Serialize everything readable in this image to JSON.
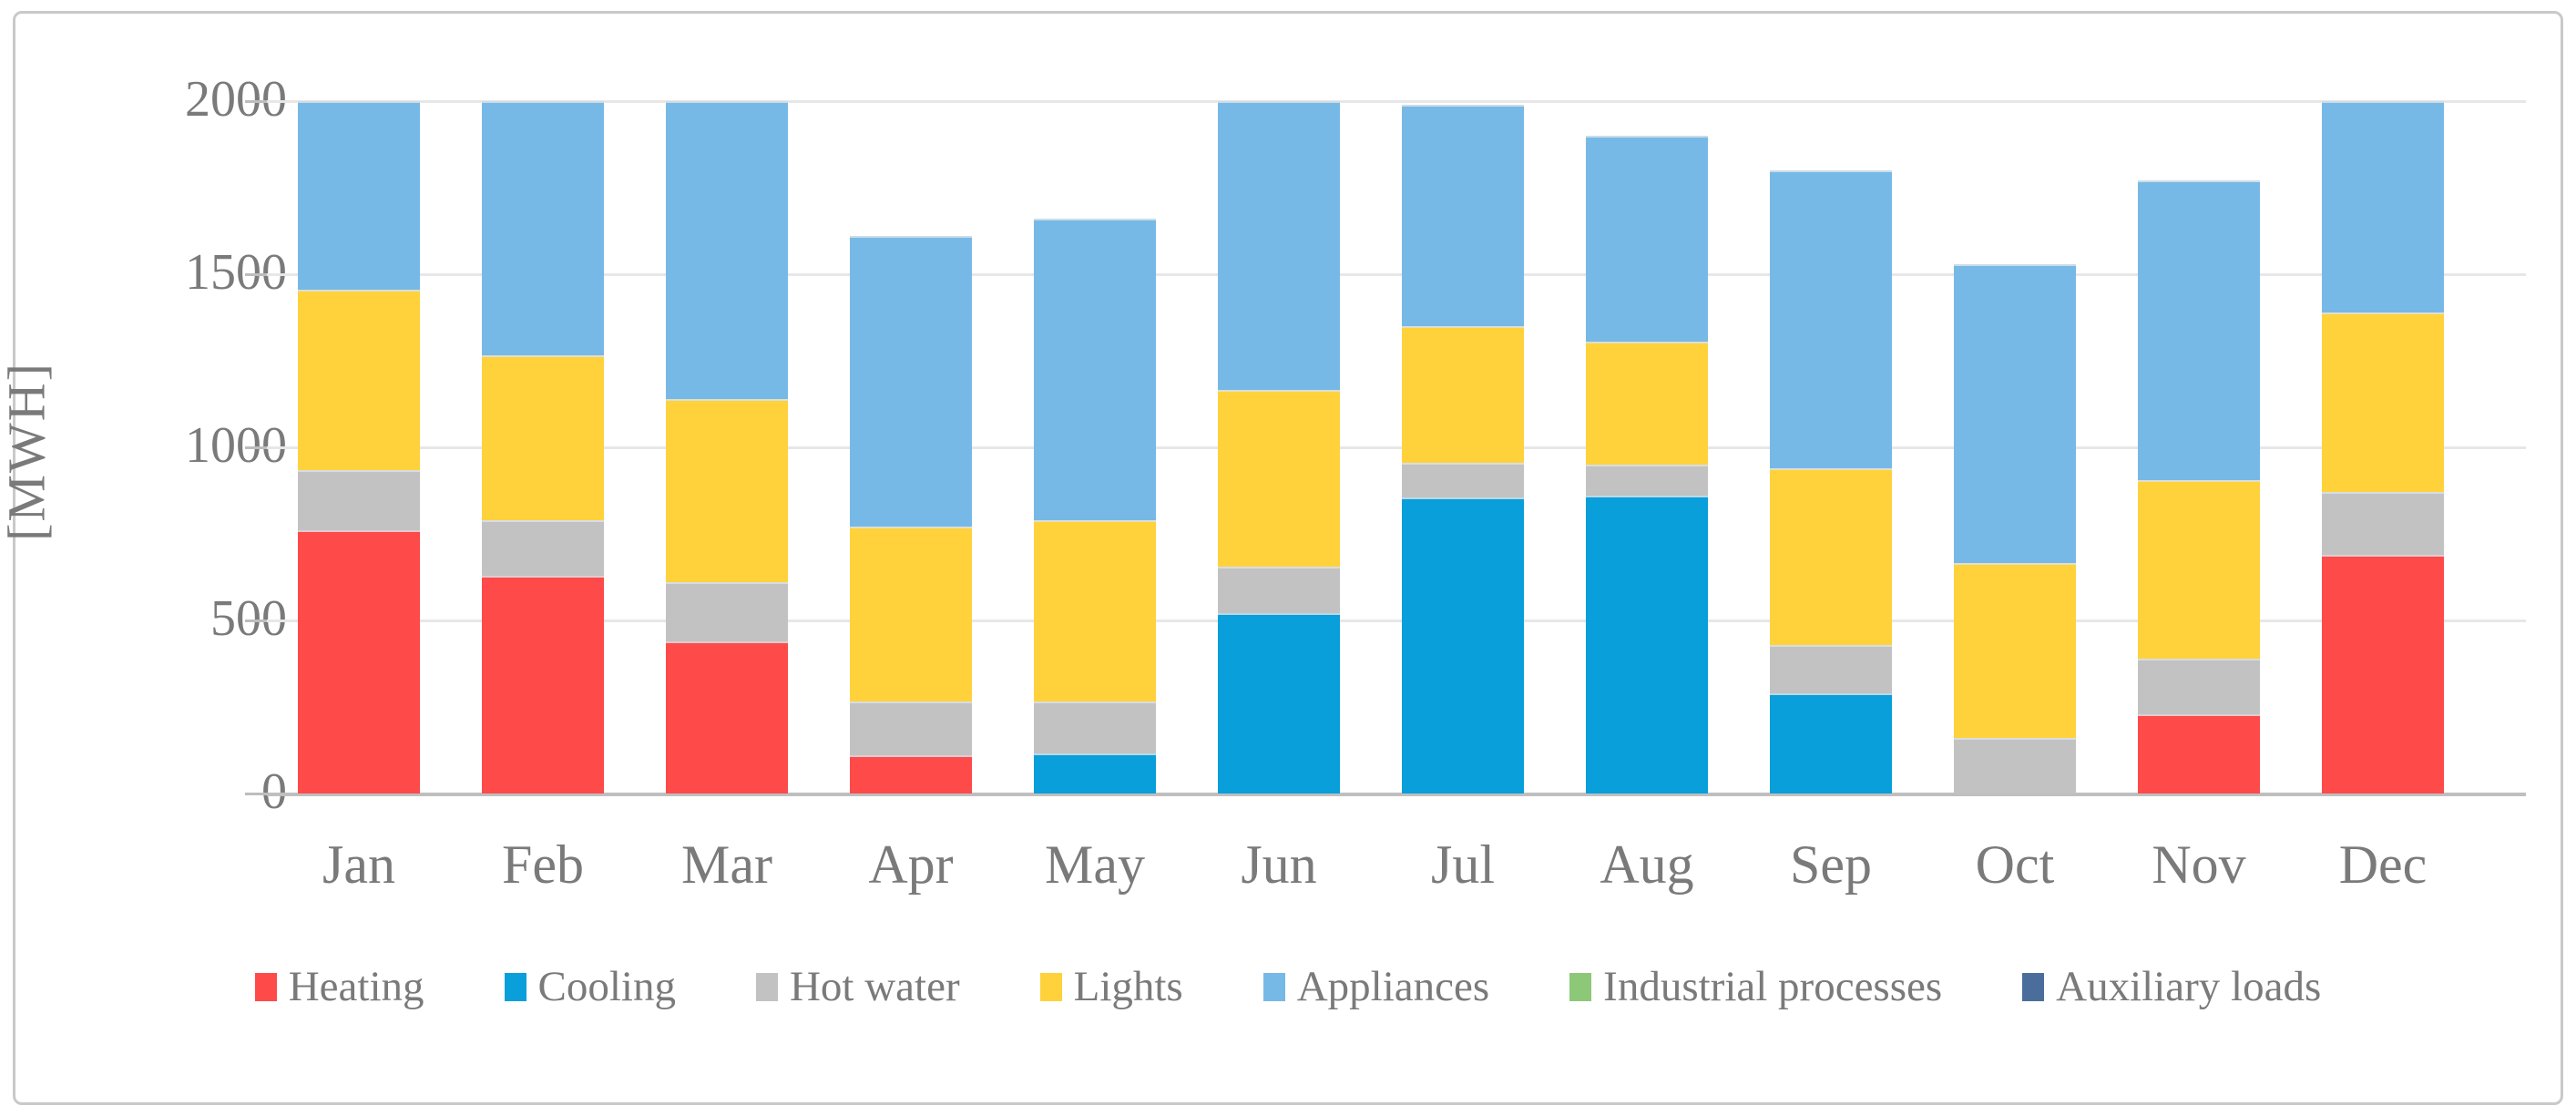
{
  "figure": {
    "type_label": "stacked-bar-energy-chart"
  },
  "style": {
    "text_color": "#7a7a7a",
    "grid_color": "#e7e7e7",
    "axis_line_color": "#bfbfbf",
    "tick_color": "#bdbdbd",
    "frame_color": "#c9c9c9",
    "background": "#ffffff"
  },
  "chart_data": {
    "type": "bar",
    "stacked": true,
    "title": "",
    "xlabel": "",
    "ylabel": "[MWH]",
    "ylim": [
      0,
      2000
    ],
    "grid": true,
    "legend_position": "bottom",
    "yticks": [
      {
        "value": 0,
        "label": "0"
      },
      {
        "value": 500,
        "label": "500"
      },
      {
        "value": 1000,
        "label": "1000"
      },
      {
        "value": 1500,
        "label": "1500"
      },
      {
        "value": 2000,
        "label": "2000"
      }
    ],
    "categories": [
      "Jan",
      "Feb",
      "Mar",
      "Apr",
      "May",
      "Jun",
      "Jul",
      "Aug",
      "Sep",
      "Oct",
      "Nov",
      "Dec"
    ],
    "series": [
      {
        "name": "Heating",
        "color": "#ff4a4a",
        "values": [
          760,
          630,
          440,
          110,
          0,
          0,
          0,
          0,
          0,
          0,
          230,
          690
        ]
      },
      {
        "name": "Cooling",
        "color": "#089fda",
        "values": [
          0,
          0,
          0,
          0,
          115,
          520,
          855,
          860,
          290,
          0,
          0,
          0
        ]
      },
      {
        "name": "Hot water",
        "color": "#c2c2c2",
        "values": [
          175,
          160,
          170,
          155,
          150,
          135,
          100,
          90,
          140,
          160,
          160,
          180
        ]
      },
      {
        "name": "Lights",
        "color": "#ffd23c",
        "values": [
          520,
          475,
          530,
          505,
          525,
          510,
          395,
          355,
          510,
          505,
          515,
          520
        ]
      },
      {
        "name": "Appliances",
        "color": "#76b9e6",
        "values": [
          545,
          735,
          860,
          840,
          870,
          835,
          640,
          595,
          860,
          865,
          865,
          610
        ]
      },
      {
        "name": "Industrial processes",
        "color": "#8cc878",
        "values": [
          0,
          0,
          0,
          0,
          0,
          0,
          0,
          0,
          0,
          0,
          0,
          0
        ]
      },
      {
        "name": "Auxiliary loads",
        "color": "#4a6d9b",
        "values": [
          0,
          0,
          0,
          0,
          0,
          0,
          0,
          0,
          0,
          0,
          0,
          0
        ]
      }
    ],
    "monthly_totals": [
      2000,
      2000,
      2000,
      1610,
      1660,
      2000,
      1990,
      1900,
      1800,
      1530,
      1770,
      2000
    ]
  }
}
